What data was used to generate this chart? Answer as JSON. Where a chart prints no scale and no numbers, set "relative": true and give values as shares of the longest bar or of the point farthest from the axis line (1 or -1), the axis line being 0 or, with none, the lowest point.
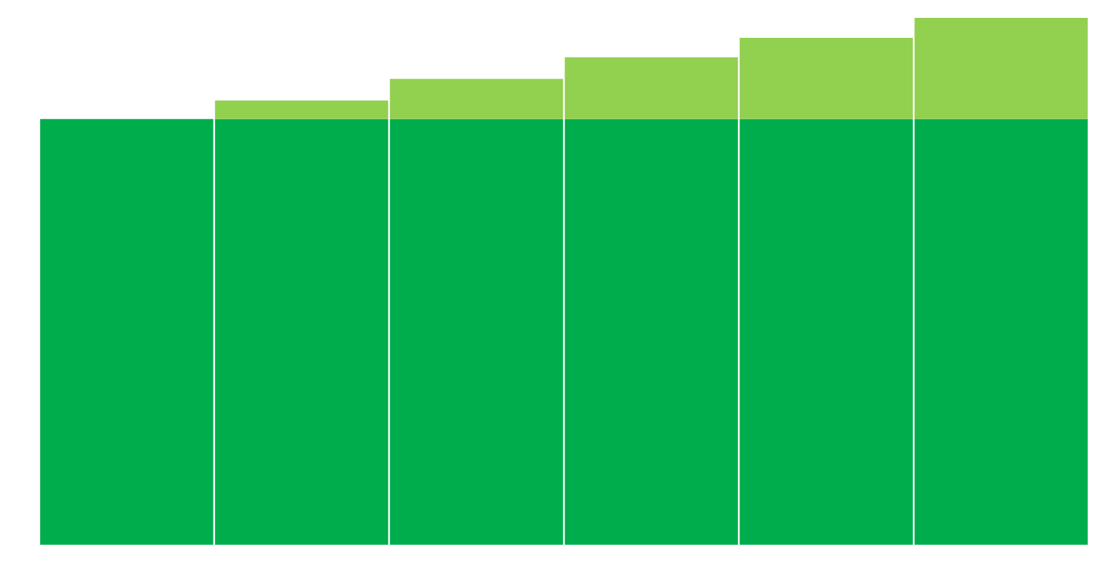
{
  "chart_data": {
    "type": "bar",
    "relative": true,
    "stacked": true,
    "categories": [
      null,
      null,
      null,
      null,
      null,
      null
    ],
    "series": [
      {
        "color": "#00ad4c",
        "values": [
          0.808,
          0.808,
          0.808,
          0.808,
          0.808,
          0.808
        ]
      },
      {
        "color": "#92d050",
        "values": [
          0,
          0.035,
          0.076,
          0.117,
          0.154,
          0.192
        ]
      }
    ]
  }
}
